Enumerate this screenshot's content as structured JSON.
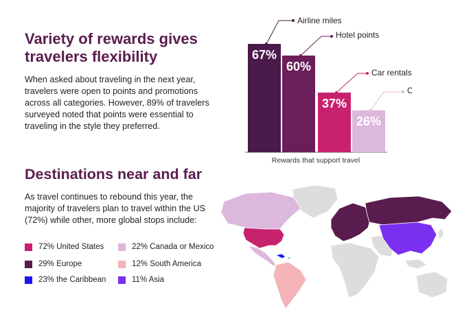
{
  "rewards": {
    "heading": "Variety of rewards gives travelers flexibility",
    "body": "When asked about traveling in the next year, travelers were open to points and promotions across all categories. However, 89% of travelers surveyed noted that points were essential to traveling in the style they preferred."
  },
  "chart_data": {
    "type": "bar",
    "title": "",
    "xlabel": "Rewards that support travel",
    "ylabel": "",
    "ylim": [
      0,
      70
    ],
    "categories": [
      "Airline miles",
      "Hotel points",
      "Car rentals",
      "Cruise lines"
    ],
    "values": [
      67,
      60,
      37,
      26
    ],
    "value_labels": [
      "67%",
      "60%",
      "37%",
      "26%"
    ],
    "colors": [
      "#4a1a4a",
      "#6b1f5a",
      "#c8226e",
      "#dcb8dc"
    ]
  },
  "destinations": {
    "heading": "Destinations near and far",
    "body": "As travel continues to rebound this year, the majority of travelers plan to travel within the US (72%) while other, more global stops include:",
    "legend": [
      {
        "label": "72% United States",
        "color": "#c8226e"
      },
      {
        "label": "22% Canada or Mexico",
        "color": "#dcb8dc"
      },
      {
        "label": "29% Europe",
        "color": "#5a1c4e"
      },
      {
        "label": "12% South America",
        "color": "#f4b4b8"
      },
      {
        "label": "23% the Caribbean",
        "color": "#1a1aef"
      },
      {
        "label": "11% Asia",
        "color": "#7b2ff0"
      }
    ],
    "map_other_color": "#dddddd"
  }
}
